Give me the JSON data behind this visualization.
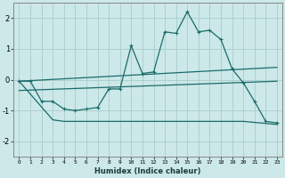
{
  "xlabel": "Humidex (Indice chaleur)",
  "background_color": "#cce8e8",
  "grid_color": "#aacccc",
  "line_color": "#1a6b6b",
  "xlim": [
    -0.5,
    23.5
  ],
  "ylim": [
    -2.5,
    2.5
  ],
  "yticks": [
    -2,
    -1,
    0,
    1,
    2
  ],
  "xticks": [
    0,
    1,
    2,
    3,
    4,
    5,
    6,
    7,
    8,
    9,
    10,
    11,
    12,
    13,
    14,
    15,
    16,
    17,
    18,
    19,
    20,
    21,
    22,
    23
  ],
  "line1_x": [
    0,
    1,
    2,
    3,
    4,
    5,
    6,
    7,
    8,
    9,
    10,
    11,
    12,
    13,
    14,
    15,
    16,
    17,
    18,
    19,
    20,
    21,
    22,
    23
  ],
  "line1_y": [
    -0.05,
    -0.05,
    -0.7,
    -0.7,
    -0.95,
    -1.0,
    -0.95,
    -0.9,
    -0.3,
    -0.3,
    1.1,
    0.2,
    0.25,
    1.55,
    1.5,
    2.2,
    1.55,
    1.6,
    1.3,
    0.35,
    -0.1,
    -0.7,
    -1.35,
    -1.4
  ],
  "line2_x": [
    0,
    23
  ],
  "line2_y": [
    -0.05,
    0.4
  ],
  "line3_x": [
    0,
    23
  ],
  "line3_y": [
    -0.35,
    -0.05
  ],
  "line4_x": [
    0,
    3,
    4,
    15,
    20,
    23
  ],
  "line4_y": [
    -0.05,
    -1.3,
    -1.35,
    -1.35,
    -1.35,
    -1.45
  ]
}
